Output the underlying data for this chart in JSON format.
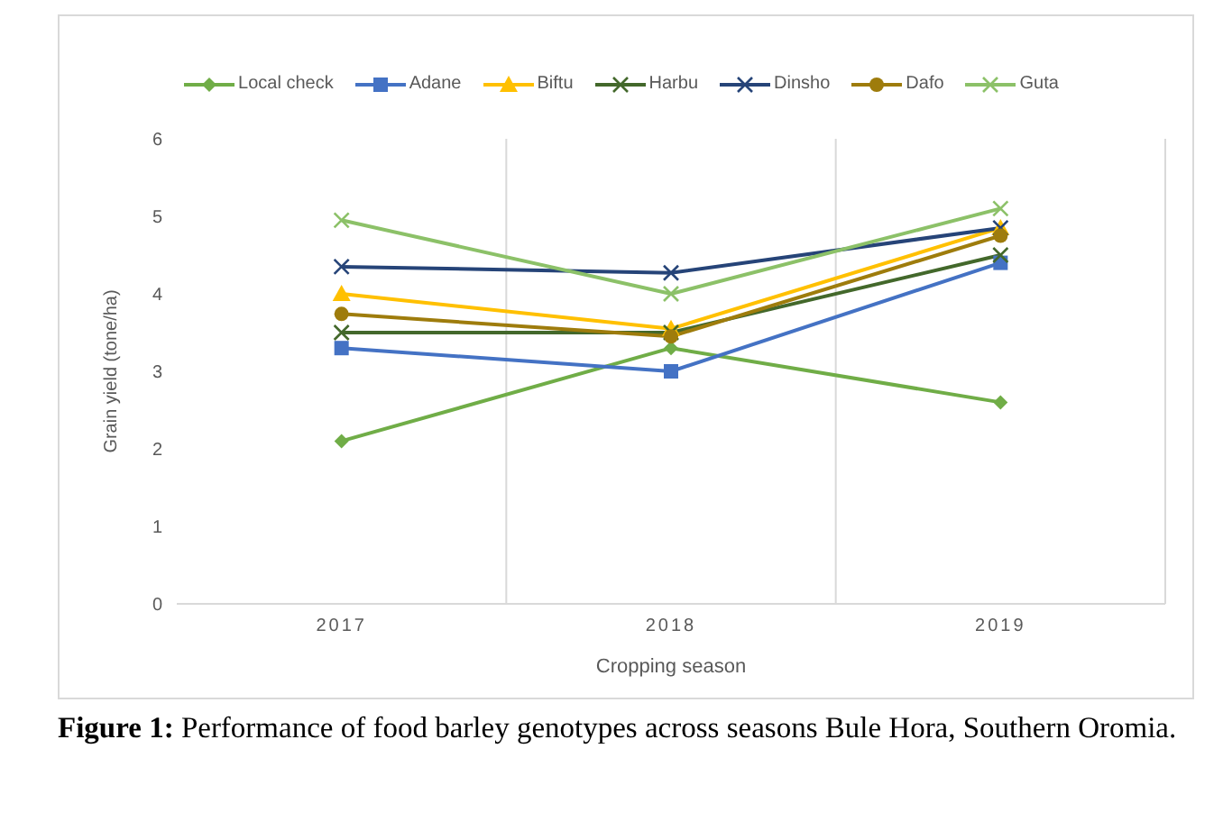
{
  "chart_data": {
    "type": "line",
    "xlabel": "Cropping season",
    "ylabel": "Grain yield (tone/ha)",
    "categories": [
      "2017",
      "2018",
      "2019"
    ],
    "series": [
      {
        "name": "Local check",
        "color": "#70ad47",
        "marker": "diamond",
        "values": [
          2.1,
          3.3,
          2.6
        ]
      },
      {
        "name": "Adane",
        "color": "#4472c4",
        "marker": "square",
        "values": [
          3.3,
          3.0,
          4.4
        ]
      },
      {
        "name": "Biftu",
        "color": "#ffc000",
        "marker": "triangle",
        "values": [
          4.0,
          3.55,
          4.85
        ]
      },
      {
        "name": "Harbu",
        "color": "#43682b",
        "marker": "cross",
        "values": [
          3.5,
          3.5,
          4.5
        ]
      },
      {
        "name": "Dinsho",
        "color": "#264478",
        "marker": "cross",
        "values": [
          4.35,
          4.27,
          4.85
        ]
      },
      {
        "name": "Dafo",
        "color": "#9e7c0c",
        "marker": "circle",
        "values": [
          3.74,
          3.45,
          4.75
        ]
      },
      {
        "name": "Guta",
        "color": "#8cc168",
        "marker": "cross",
        "values": [
          4.95,
          4.0,
          5.1
        ]
      }
    ],
    "ylim": [
      0,
      6
    ],
    "yticks": [
      0,
      1,
      2,
      3,
      4,
      5,
      6
    ],
    "grid": "x",
    "legend": "top",
    "annotations": [
      "Figure 1: Performance of food barley genotypes across seasons Bule Hora, Southern Oromia."
    ]
  }
}
